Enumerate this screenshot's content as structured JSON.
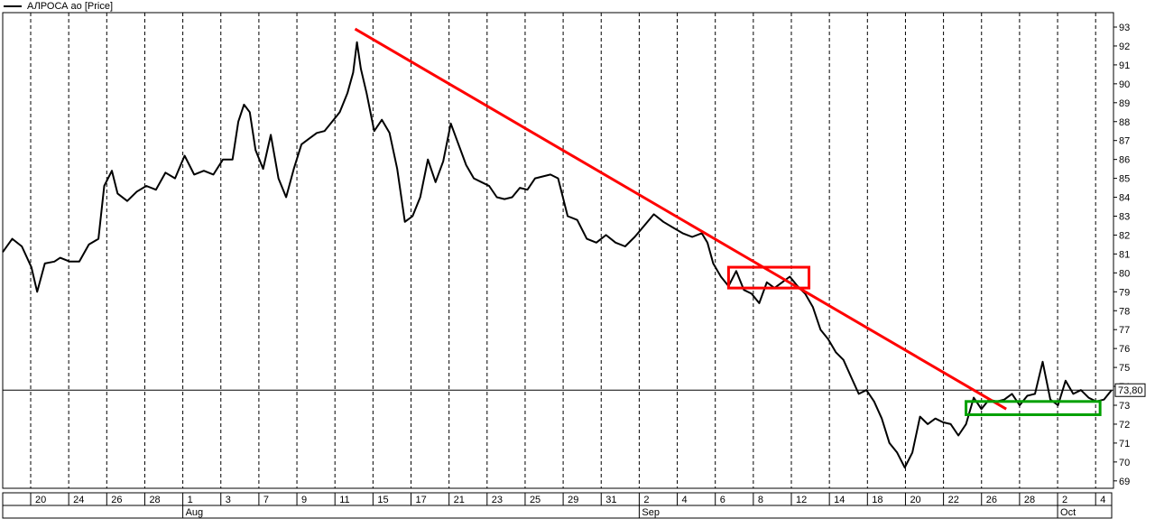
{
  "chart_data": {
    "type": "line",
    "legend": "АЛРОСА ао [Price]",
    "last_price_label": "73,80",
    "last_price": 73.8,
    "ylim": [
      68.7,
      93.4
    ],
    "y_ticks": [
      69,
      70,
      71,
      72,
      73,
      74,
      75,
      76,
      77,
      78,
      79,
      80,
      81,
      82,
      83,
      84,
      85,
      86,
      87,
      88,
      89,
      90,
      91,
      92,
      93
    ],
    "y_tick_labels": [
      "69",
      "70",
      "71",
      "72",
      "73",
      "74",
      "75",
      "76",
      "77",
      "78",
      "79",
      "80",
      "81",
      "82",
      "83",
      "84",
      "85",
      "86",
      "87",
      "88",
      "89",
      "90",
      "91",
      "92",
      "93"
    ],
    "x_ticks": [
      "20",
      "24",
      "26",
      "28",
      "1",
      "3",
      "7",
      "9",
      "11",
      "15",
      "17",
      "21",
      "23",
      "25",
      "29",
      "31",
      "2",
      "4",
      "6",
      "8",
      "12",
      "14",
      "18",
      "20",
      "22",
      "26",
      "28",
      "2",
      "4"
    ],
    "month_labels": [
      {
        "label": "Aug",
        "at_tick": 4
      },
      {
        "label": "Sep",
        "at_tick": 16
      },
      {
        "label": "Oct",
        "at_tick": 27
      }
    ],
    "series": [
      {
        "color": "#000000",
        "points": [
          [
            0.0,
            81.1
          ],
          [
            0.5,
            81.8
          ],
          [
            1.0,
            81.4
          ],
          [
            1.5,
            80.3
          ],
          [
            1.8,
            79.0
          ],
          [
            2.2,
            80.5
          ],
          [
            2.7,
            80.6
          ],
          [
            3.0,
            80.8
          ],
          [
            3.5,
            80.6
          ],
          [
            4.0,
            80.6
          ],
          [
            4.5,
            81.5
          ],
          [
            5.0,
            81.8
          ],
          [
            5.3,
            84.6
          ],
          [
            5.7,
            85.4
          ],
          [
            6.0,
            84.2
          ],
          [
            6.5,
            83.8
          ],
          [
            7.0,
            84.3
          ],
          [
            7.5,
            84.6
          ],
          [
            8.0,
            84.4
          ],
          [
            8.5,
            85.3
          ],
          [
            9.0,
            85.0
          ],
          [
            9.5,
            86.2
          ],
          [
            10.0,
            85.2
          ],
          [
            10.5,
            85.4
          ],
          [
            11.0,
            85.2
          ],
          [
            11.5,
            86.0
          ],
          [
            12.0,
            86.0
          ],
          [
            12.3,
            88.0
          ],
          [
            12.6,
            88.9
          ],
          [
            12.9,
            88.5
          ],
          [
            13.2,
            86.5
          ],
          [
            13.6,
            85.5
          ],
          [
            14.0,
            87.3
          ],
          [
            14.4,
            85.0
          ],
          [
            14.8,
            84.0
          ],
          [
            15.2,
            85.5
          ],
          [
            15.6,
            86.8
          ],
          [
            16.0,
            87.1
          ],
          [
            16.4,
            87.4
          ],
          [
            16.8,
            87.5
          ],
          [
            17.2,
            88.0
          ],
          [
            17.6,
            88.5
          ],
          [
            18.0,
            89.5
          ],
          [
            18.3,
            90.6
          ],
          [
            18.5,
            92.2
          ],
          [
            18.7,
            90.8
          ],
          [
            19.0,
            89.5
          ],
          [
            19.4,
            87.5
          ],
          [
            19.8,
            88.1
          ],
          [
            20.2,
            87.4
          ],
          [
            20.6,
            85.5
          ],
          [
            21.0,
            82.7
          ],
          [
            21.4,
            83.0
          ],
          [
            21.8,
            84.0
          ],
          [
            22.2,
            86.0
          ],
          [
            22.6,
            84.8
          ],
          [
            23.0,
            85.9
          ],
          [
            23.4,
            87.9
          ],
          [
            23.8,
            86.8
          ],
          [
            24.2,
            85.7
          ],
          [
            24.6,
            85.0
          ],
          [
            25.0,
            84.8
          ],
          [
            25.4,
            84.6
          ],
          [
            25.8,
            84.0
          ],
          [
            26.2,
            83.9
          ],
          [
            26.6,
            84.0
          ],
          [
            27.0,
            84.5
          ],
          [
            27.4,
            84.4
          ],
          [
            27.8,
            85.0
          ],
          [
            28.2,
            85.1
          ],
          [
            28.6,
            85.2
          ],
          [
            29.0,
            85.0
          ],
          [
            29.5,
            83.0
          ],
          [
            30.0,
            82.8
          ],
          [
            30.5,
            81.8
          ],
          [
            31.0,
            81.6
          ],
          [
            31.5,
            82.0
          ],
          [
            32.0,
            81.6
          ],
          [
            32.5,
            81.4
          ],
          [
            33.0,
            81.9
          ],
          [
            33.5,
            82.5
          ],
          [
            34.0,
            83.1
          ],
          [
            34.5,
            82.7
          ],
          [
            35.0,
            82.4
          ],
          [
            35.5,
            82.1
          ],
          [
            36.0,
            81.9
          ],
          [
            36.5,
            82.1
          ],
          [
            36.8,
            81.6
          ],
          [
            37.1,
            80.5
          ],
          [
            37.5,
            79.8
          ],
          [
            37.9,
            79.3
          ],
          [
            38.3,
            80.1
          ],
          [
            38.7,
            79.1
          ],
          [
            39.1,
            78.9
          ],
          [
            39.5,
            78.4
          ],
          [
            39.9,
            79.5
          ],
          [
            40.3,
            79.2
          ],
          [
            40.7,
            79.5
          ],
          [
            41.1,
            79.8
          ],
          [
            41.5,
            79.3
          ],
          [
            41.9,
            78.9
          ],
          [
            42.3,
            78.2
          ],
          [
            42.7,
            77.0
          ],
          [
            43.1,
            76.5
          ],
          [
            43.5,
            75.8
          ],
          [
            43.9,
            75.4
          ],
          [
            44.3,
            74.5
          ],
          [
            44.7,
            73.6
          ],
          [
            45.1,
            73.8
          ],
          [
            45.5,
            73.2
          ],
          [
            45.9,
            72.3
          ],
          [
            46.3,
            71.0
          ],
          [
            46.7,
            70.5
          ],
          [
            47.1,
            69.7
          ],
          [
            47.5,
            70.5
          ],
          [
            47.9,
            72.4
          ],
          [
            48.3,
            72.0
          ],
          [
            48.7,
            72.3
          ],
          [
            49.1,
            72.1
          ],
          [
            49.5,
            72.0
          ],
          [
            49.9,
            71.4
          ],
          [
            50.3,
            72.0
          ],
          [
            50.7,
            73.4
          ],
          [
            51.1,
            72.8
          ],
          [
            51.5,
            73.3
          ],
          [
            51.9,
            73.2
          ],
          [
            52.3,
            73.3
          ],
          [
            52.7,
            73.6
          ],
          [
            53.1,
            73.0
          ],
          [
            53.5,
            73.5
          ],
          [
            53.9,
            73.6
          ],
          [
            54.3,
            75.3
          ],
          [
            54.7,
            73.3
          ],
          [
            55.1,
            73.0
          ],
          [
            55.5,
            74.3
          ],
          [
            55.9,
            73.6
          ],
          [
            56.3,
            73.8
          ],
          [
            56.7,
            73.4
          ],
          [
            57.1,
            73.2
          ],
          [
            57.5,
            73.3
          ],
          [
            57.9,
            73.8
          ]
        ]
      }
    ],
    "x_range": [
      0,
      58
    ],
    "annotations": {
      "trend_line": {
        "color": "#ff0000",
        "from": [
          18.4,
          92.9
        ],
        "to": [
          52.4,
          72.8
        ]
      },
      "boxes": [
        {
          "color": "#ff0000",
          "x": [
            37.9,
            42.1
          ],
          "y": [
            79.2,
            80.3
          ]
        },
        {
          "color": "#00a000",
          "x": [
            50.3,
            57.3
          ],
          "y": [
            72.5,
            73.2
          ]
        }
      ]
    }
  }
}
